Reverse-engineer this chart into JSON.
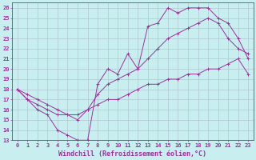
{
  "xlabel": "Windchill (Refroidissement éolien,°C)",
  "xlim": [
    -0.5,
    23.5
  ],
  "ylim": [
    13,
    26.5
  ],
  "xticks": [
    0,
    1,
    2,
    3,
    4,
    5,
    6,
    7,
    8,
    9,
    10,
    11,
    12,
    13,
    14,
    15,
    16,
    17,
    18,
    19,
    20,
    21,
    22,
    23
  ],
  "yticks": [
    13,
    14,
    15,
    16,
    17,
    18,
    19,
    20,
    21,
    22,
    23,
    24,
    25,
    26
  ],
  "background_color": "#c8eef0",
  "grid_color": "#b0c8d0",
  "line_color": "#993399",
  "line1_x": [
    0,
    1,
    2,
    3,
    4,
    5,
    6,
    7,
    8,
    9,
    10,
    11,
    12,
    13,
    14,
    15,
    16,
    17,
    18,
    19,
    20,
    21,
    22,
    23
  ],
  "line1_y": [
    18,
    17,
    16,
    15.5,
    14,
    13.5,
    13,
    13,
    18.5,
    20,
    19.5,
    21.5,
    20,
    24.2,
    24.5,
    26,
    25.5,
    26,
    26,
    26,
    25,
    24.5,
    23,
    21
  ],
  "line2_x": [
    0,
    1,
    2,
    3,
    4,
    5,
    6,
    7,
    8,
    9,
    10,
    11,
    12,
    13,
    14,
    15,
    16,
    17,
    18,
    19,
    20,
    21,
    22,
    23
  ],
  "line2_y": [
    18,
    17.5,
    17,
    16.5,
    16,
    15.5,
    15,
    16,
    17.5,
    18.5,
    19,
    19.5,
    20,
    21,
    22,
    23,
    23.5,
    24,
    24.5,
    25,
    24.5,
    23,
    22,
    21.5
  ],
  "line3_x": [
    0,
    1,
    2,
    3,
    4,
    5,
    6,
    7,
    8,
    9,
    10,
    11,
    12,
    13,
    14,
    15,
    16,
    17,
    18,
    19,
    20,
    21,
    22,
    23
  ],
  "line3_y": [
    18,
    17,
    16.5,
    16,
    15.5,
    15.5,
    15.5,
    16,
    16.5,
    17,
    17,
    17.5,
    18,
    18.5,
    18.5,
    19,
    19,
    19.5,
    19.5,
    20,
    20,
    20.5,
    21,
    19.5
  ],
  "tick_fontsize": 5,
  "label_fontsize": 6,
  "marker_size": 2.0
}
